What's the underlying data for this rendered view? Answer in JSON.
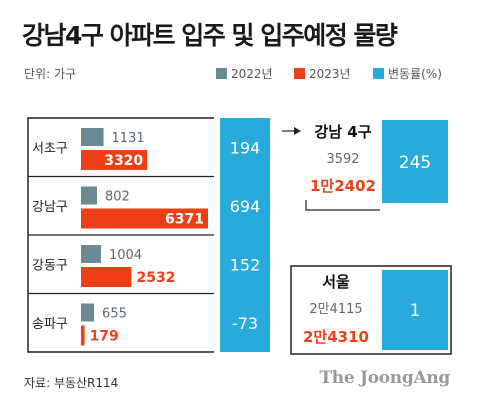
{
  "title": "강남4구 아파트 입주 및 입주예정 물량",
  "unit_label": "단위: 가구",
  "source_label": "자료: 부동산R114",
  "logo_text": "The JoongAng",
  "colors": {
    "y2022": "#6b8a96",
    "y2023": "#ef3f16",
    "change": "#29aadc",
    "frame": "#222222"
  },
  "chart_data": {
    "type": "bar",
    "legend": [
      "2022년",
      "2023년",
      "변동률(%)"
    ],
    "categories": [
      "서초구",
      "강남구",
      "강동구",
      "송파구"
    ],
    "series": [
      {
        "name": "2022년",
        "values": [
          1131,
          802,
          1004,
          655
        ]
      },
      {
        "name": "2023년",
        "values": [
          3320,
          6371,
          2532,
          179
        ]
      },
      {
        "name": "변동률(%)",
        "values": [
          194,
          694,
          152,
          -73
        ]
      }
    ],
    "xlim": [
      0,
      6371
    ]
  },
  "summary_boxes": [
    {
      "title": "강남 4구",
      "y2022_label": "3592",
      "y2023_label": "1만2402",
      "change": 245
    },
    {
      "title": "서울",
      "y2022_label": "2만4115",
      "y2023_label": "2만4310",
      "change": 1
    }
  ]
}
